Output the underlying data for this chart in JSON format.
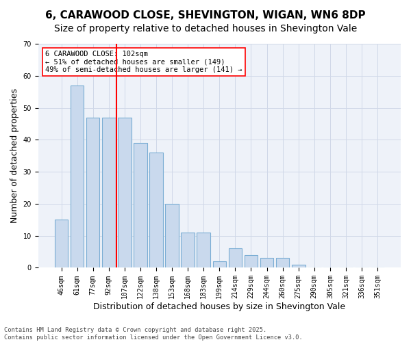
{
  "title1": "6, CARAWOOD CLOSE, SHEVINGTON, WIGAN, WN6 8DP",
  "title2": "Size of property relative to detached houses in Shevington Vale",
  "xlabel": "Distribution of detached houses by size in Shevington Vale",
  "ylabel": "Number of detached properties",
  "bin_labels": [
    "46sqm",
    "61sqm",
    "77sqm",
    "92sqm",
    "107sqm",
    "122sqm",
    "138sqm",
    "153sqm",
    "168sqm",
    "183sqm",
    "199sqm",
    "214sqm",
    "229sqm",
    "244sqm",
    "260sqm",
    "275sqm",
    "290sqm",
    "305sqm",
    "321sqm",
    "336sqm",
    "351sqm"
  ],
  "bar_values": [
    15,
    57,
    47,
    47,
    47,
    39,
    36,
    20,
    11,
    11,
    2,
    6,
    4,
    3,
    3,
    1,
    0,
    0,
    0,
    0,
    0
  ],
  "bar_color": "#c9d9ed",
  "bar_edgecolor": "#7aadd4",
  "bar_linewidth": 0.8,
  "vline_color": "red",
  "vline_linewidth": 1.5,
  "annotation_text": "6 CARAWOOD CLOSE: 102sqm\n← 51% of detached houses are smaller (149)\n49% of semi-detached houses are larger (141) →",
  "annotation_fontsize": 7.5,
  "ylim": [
    0,
    70
  ],
  "yticks": [
    0,
    10,
    20,
    30,
    40,
    50,
    60,
    70
  ],
  "grid_color": "#d0d8e8",
  "background_color": "#eef2f9",
  "footer_text": "Contains HM Land Registry data © Crown copyright and database right 2025.\nContains public sector information licensed under the Open Government Licence v3.0.",
  "title_fontsize": 11,
  "subtitle_fontsize": 10,
  "xlabel_fontsize": 9,
  "ylabel_fontsize": 9,
  "tick_fontsize": 7
}
